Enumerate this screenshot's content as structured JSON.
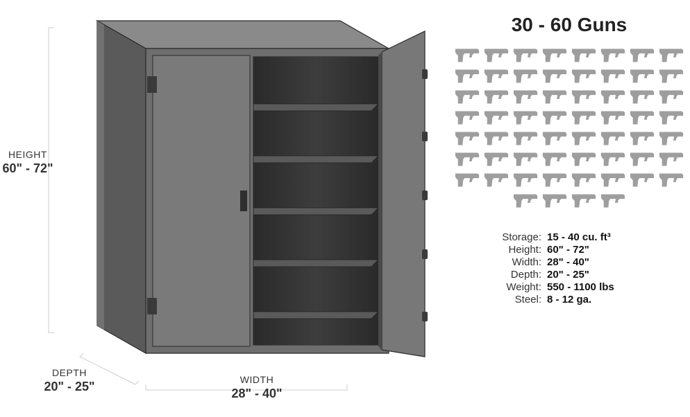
{
  "type": "infographic",
  "background_color": "#ffffff",
  "safe_illustration": {
    "body_color": "#6a6a6a",
    "body_highlight": "#8a8a8a",
    "body_shadow": "#4a4a4a",
    "interior_color": "#3a3a3a",
    "shelf_color": "#555555",
    "outline_color": "#2a2a2a",
    "dimension_line_color": "#cccccc",
    "shelves": 5
  },
  "dimensions": {
    "height": {
      "label": "HEIGHT",
      "value": "60\" - 72\""
    },
    "depth": {
      "label": "DEPTH",
      "value": "20\" - 25\""
    },
    "width": {
      "label": "WIDTH",
      "value": "28\" - 40\""
    }
  },
  "title": "30 - 60 Guns",
  "guns_grid": {
    "rows": 8,
    "cols": 8,
    "last_row_cols": 4,
    "icon_color": "#9e9e9e"
  },
  "specs": [
    {
      "label": "Storage:",
      "value": "15 - 40 cu. ft³"
    },
    {
      "label": "Height:",
      "value": "60\" - 72\""
    },
    {
      "label": "Width:",
      "value": "28\" - 40\""
    },
    {
      "label": "Depth:",
      "value": "20\" - 25\""
    },
    {
      "label": "Weight:",
      "value": "550 - 1100 lbs"
    },
    {
      "label": "Steel:",
      "value": "8 - 12 ga."
    }
  ],
  "typography": {
    "title_fontsize": 28,
    "dimlabel_fontsize": 14,
    "dimvalue_fontsize": 18,
    "spec_fontsize": 15
  }
}
